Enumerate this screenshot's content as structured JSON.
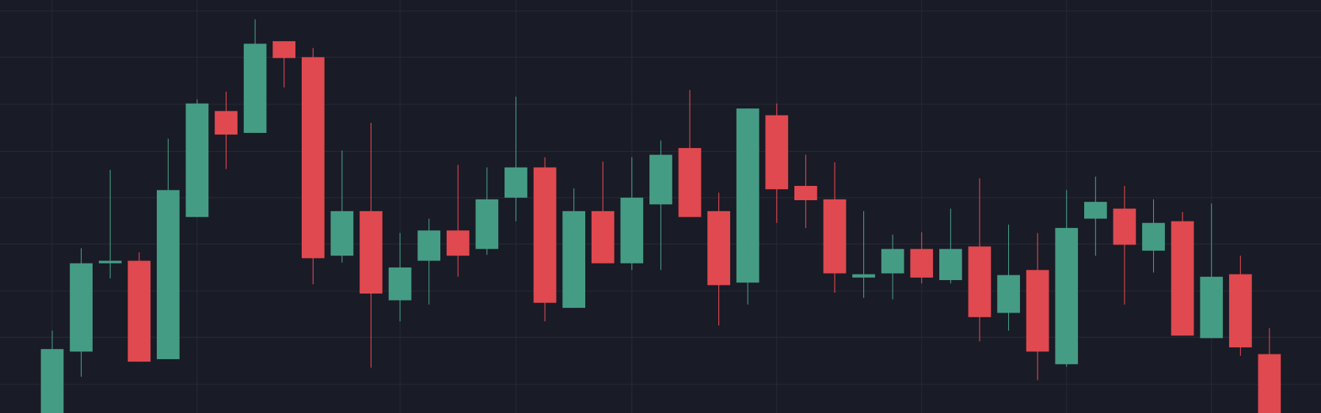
{
  "chart_data": {
    "type": "candlestick",
    "up_color": "#459c84",
    "down_color": "#e0494f",
    "grid": true,
    "ylim": [
      0,
      491
    ],
    "yticks": [
      34,
      90,
      145,
      201,
      256,
      311,
      367,
      423,
      478
    ],
    "open": [
      -4,
      73,
      178,
      181,
      64,
      233,
      359,
      333,
      442,
      423,
      187,
      240,
      134,
      181,
      217,
      195,
      256,
      292,
      125,
      240,
      178,
      248,
      315,
      240,
      155,
      354,
      270,
      254,
      161,
      166,
      195,
      158,
      198,
      119,
      170,
      58,
      231,
      243,
      193,
      228,
      89,
      165,
      70
    ],
    "high": [
      98,
      196,
      289,
      191,
      326,
      373,
      382,
      468,
      442,
      434,
      312,
      345,
      214,
      231,
      295,
      292,
      376,
      304,
      267,
      299,
      304,
      324,
      384,
      262,
      362,
      368,
      307,
      298,
      240,
      212,
      215,
      243,
      279,
      224,
      214,
      265,
      281,
      270,
      254,
      239,
      249,
      187,
      101
    ],
    "low": [
      -9,
      43,
      160,
      61,
      64,
      233,
      290,
      333,
      387,
      153,
      179,
      54,
      109,
      129,
      162,
      188,
      228,
      109,
      125,
      178,
      170,
      170,
      233,
      104,
      129,
      226,
      220,
      143,
      137,
      135,
      154,
      154,
      85,
      98,
      39,
      55,
      187,
      129,
      167,
      92,
      89,
      68,
      -9
    ],
    "close": [
      76,
      178,
      181,
      61,
      265,
      368,
      331,
      439,
      422,
      184,
      240,
      142,
      173,
      217,
      187,
      254,
      292,
      131,
      240,
      178,
      256,
      307,
      233,
      152,
      362,
      266,
      253,
      166,
      165,
      195,
      161,
      195,
      114,
      164,
      73,
      220,
      251,
      200,
      226,
      92,
      162,
      78,
      -4
    ]
  }
}
